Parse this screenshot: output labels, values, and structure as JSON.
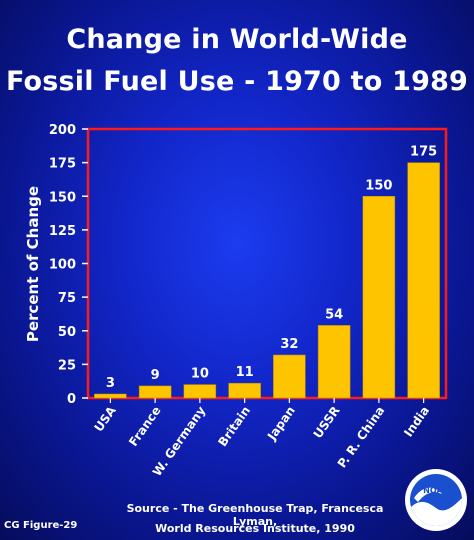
{
  "header": {
    "title_line1": "Change in World-Wide",
    "title_line2": "Fossil Fuel Use - 1970 to 1989"
  },
  "footer": {
    "source_line1": "Source - The Greenhouse Trap, Francesca Lyman,",
    "source_line2": "World Resources Institute, 1990",
    "figure_label": "CG Figure-29",
    "logo_text": "NOAA"
  },
  "colors": {
    "bar": "#ffc400",
    "frame": "#ff1a1a",
    "text": "#ffffff"
  },
  "chart_data": {
    "type": "bar",
    "title": "Change in World-Wide Fossil Fuel Use - 1970 to 1989",
    "ylabel": "Percent of Change",
    "xlabel": "",
    "categories": [
      "USA",
      "France",
      "W. Germany",
      "Britain",
      "Japan",
      "USSR",
      "P. R. China",
      "India"
    ],
    "values": [
      3,
      9,
      10,
      11,
      32,
      54,
      150,
      175
    ],
    "ylim": [
      0,
      200
    ],
    "yticks": [
      0,
      25,
      50,
      75,
      100,
      125,
      150,
      175,
      200
    ],
    "grid": false,
    "data_labels": true
  }
}
